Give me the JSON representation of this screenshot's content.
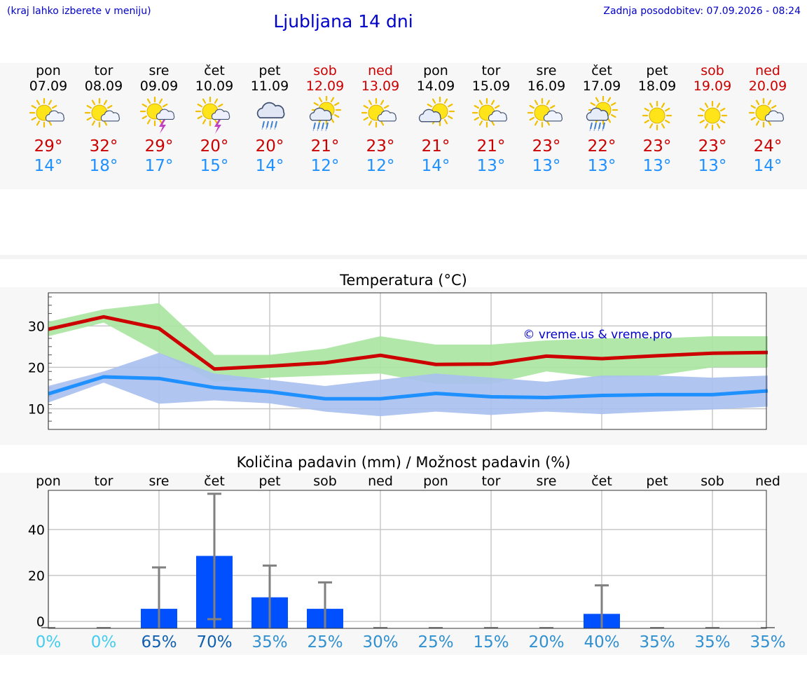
{
  "header": {
    "hint": "(kraj lahko izberete v meniju)",
    "title": "Ljubljana 14 dni",
    "updated": "Zadnja posodobitev: 07.09.2026 - 08:24"
  },
  "days": [
    {
      "name": "pon",
      "date": "07.09",
      "weekend": false,
      "icon": "sun-cloud-icon",
      "tmax": "29°",
      "tmin": "14°"
    },
    {
      "name": "tor",
      "date": "08.09",
      "weekend": false,
      "icon": "sun-cloud-icon",
      "tmax": "32°",
      "tmin": "18°"
    },
    {
      "name": "sre",
      "date": "09.09",
      "weekend": false,
      "icon": "sun-cloud-thunder-icon",
      "tmax": "29°",
      "tmin": "17°"
    },
    {
      "name": "čet",
      "date": "10.09",
      "weekend": false,
      "icon": "sun-cloud-thunder-icon",
      "tmax": "20°",
      "tmin": "15°"
    },
    {
      "name": "pet",
      "date": "11.09",
      "weekend": false,
      "icon": "cloud-rain-icon",
      "tmax": "20°",
      "tmin": "14°"
    },
    {
      "name": "sob",
      "date": "12.09",
      "weekend": true,
      "icon": "sun-cloud-rain-icon",
      "tmax": "21°",
      "tmin": "12°"
    },
    {
      "name": "ned",
      "date": "13.09",
      "weekend": true,
      "icon": "sun-cloud-icon",
      "tmax": "23°",
      "tmin": "12°"
    },
    {
      "name": "pon",
      "date": "14.09",
      "weekend": false,
      "icon": "cloud-sun-icon",
      "tmax": "21°",
      "tmin": "14°"
    },
    {
      "name": "tor",
      "date": "15.09",
      "weekend": false,
      "icon": "sun-cloud-icon",
      "tmax": "21°",
      "tmin": "13°"
    },
    {
      "name": "sre",
      "date": "16.09",
      "weekend": false,
      "icon": "sun-cloud-icon",
      "tmax": "23°",
      "tmin": "13°"
    },
    {
      "name": "čet",
      "date": "17.09",
      "weekend": false,
      "icon": "sun-cloud-rain-icon",
      "tmax": "22°",
      "tmin": "13°"
    },
    {
      "name": "pet",
      "date": "18.09",
      "weekend": false,
      "icon": "sun-icon",
      "tmax": "23°",
      "tmin": "13°"
    },
    {
      "name": "sob",
      "date": "19.09",
      "weekend": true,
      "icon": "sun-icon",
      "tmax": "23°",
      "tmin": "13°"
    },
    {
      "name": "ned",
      "date": "20.09",
      "weekend": true,
      "icon": "sun-cloud-icon",
      "tmax": "24°",
      "tmin": "14°"
    }
  ],
  "colors": {
    "link": "#0000cc",
    "tmax": "#cc0000",
    "tmin": "#1e90ff",
    "max_band": "#a8e6a0",
    "min_band": "#a8bff0",
    "rain_bar": "#0050ff",
    "error_bar": "#808080"
  },
  "chart_data": [
    {
      "type": "line",
      "title": "Temperatura (°C)",
      "watermark": "© vreme.us & vreme.pro",
      "x": [
        "07.09",
        "08.09",
        "09.09",
        "10.09",
        "11.09",
        "12.09",
        "13.09",
        "14.09",
        "15.09",
        "16.09",
        "17.09",
        "18.09",
        "19.09",
        "20.09"
      ],
      "ylim": [
        5,
        38
      ],
      "yticks": [
        10,
        20,
        30
      ],
      "grid": true,
      "series": [
        {
          "values": [
            29.2,
            32.2,
            29.4,
            19.6,
            20.3,
            21.1,
            22.9,
            20.7,
            20.8,
            22.7,
            22.1,
            22.8,
            23.4,
            23.6
          ],
          "band_low": [
            27.5,
            30.8,
            23.5,
            16.5,
            17.5,
            18.0,
            18.5,
            16.0,
            16.0,
            19.0,
            17.5,
            18.0,
            20.0,
            20.0
          ],
          "band_high": [
            31.0,
            34.0,
            35.5,
            23.0,
            23.0,
            24.5,
            27.5,
            25.5,
            25.5,
            26.5,
            27.0,
            27.0,
            27.5,
            27.5
          ]
        },
        {
          "values": [
            13.6,
            17.7,
            17.3,
            15.1,
            14.1,
            12.4,
            12.4,
            13.7,
            12.9,
            12.7,
            13.2,
            13.4,
            13.4,
            14.3
          ],
          "band_low": [
            11.5,
            16.3,
            11.2,
            12.0,
            11.3,
            9.3,
            8.2,
            9.3,
            8.5,
            9.3,
            8.7,
            9.3,
            9.8,
            10.5
          ],
          "band_high": [
            15.5,
            19.0,
            23.5,
            18.5,
            17.0,
            15.5,
            17.0,
            18.5,
            17.5,
            16.5,
            18.0,
            18.0,
            17.5,
            18.0
          ]
        }
      ]
    },
    {
      "type": "bar",
      "title": "Količina padavin (mm) / Možnost padavin (%)",
      "categories": [
        "pon",
        "tor",
        "sre",
        "čet",
        "pet",
        "sob",
        "ned",
        "pon",
        "tor",
        "sre",
        "čet",
        "pet",
        "sob",
        "ned"
      ],
      "ylim": [
        -3,
        57
      ],
      "yticks": [
        0,
        20,
        40
      ],
      "grid": true,
      "series": [
        {
          "values": [
            0,
            0,
            5.5,
            28.5,
            10.5,
            5.5,
            0,
            0,
            0,
            0,
            3.3,
            0,
            0,
            0
          ],
          "error_low": [
            0,
            0,
            0,
            1,
            0,
            0,
            0,
            0,
            0,
            0,
            0,
            0,
            0,
            0
          ],
          "error_high": [
            0,
            0,
            23.5,
            55.5,
            24.3,
            17.0,
            0,
            0,
            0,
            0,
            15.7,
            0,
            0,
            0
          ]
        }
      ],
      "probability": [
        "0%",
        "0%",
        "65%",
        "70%",
        "35%",
        "25%",
        "30%",
        "25%",
        "15%",
        "20%",
        "40%",
        "35%",
        "35%",
        "35%"
      ],
      "probability_colors": [
        "#44ccee",
        "#44ccee",
        "#1060b0",
        "#1060b0",
        "#3090d0",
        "#3090d0",
        "#3090d0",
        "#3090d0",
        "#3090d0",
        "#3090d0",
        "#3090d0",
        "#3090d0",
        "#3090d0",
        "#3090d0"
      ]
    }
  ]
}
